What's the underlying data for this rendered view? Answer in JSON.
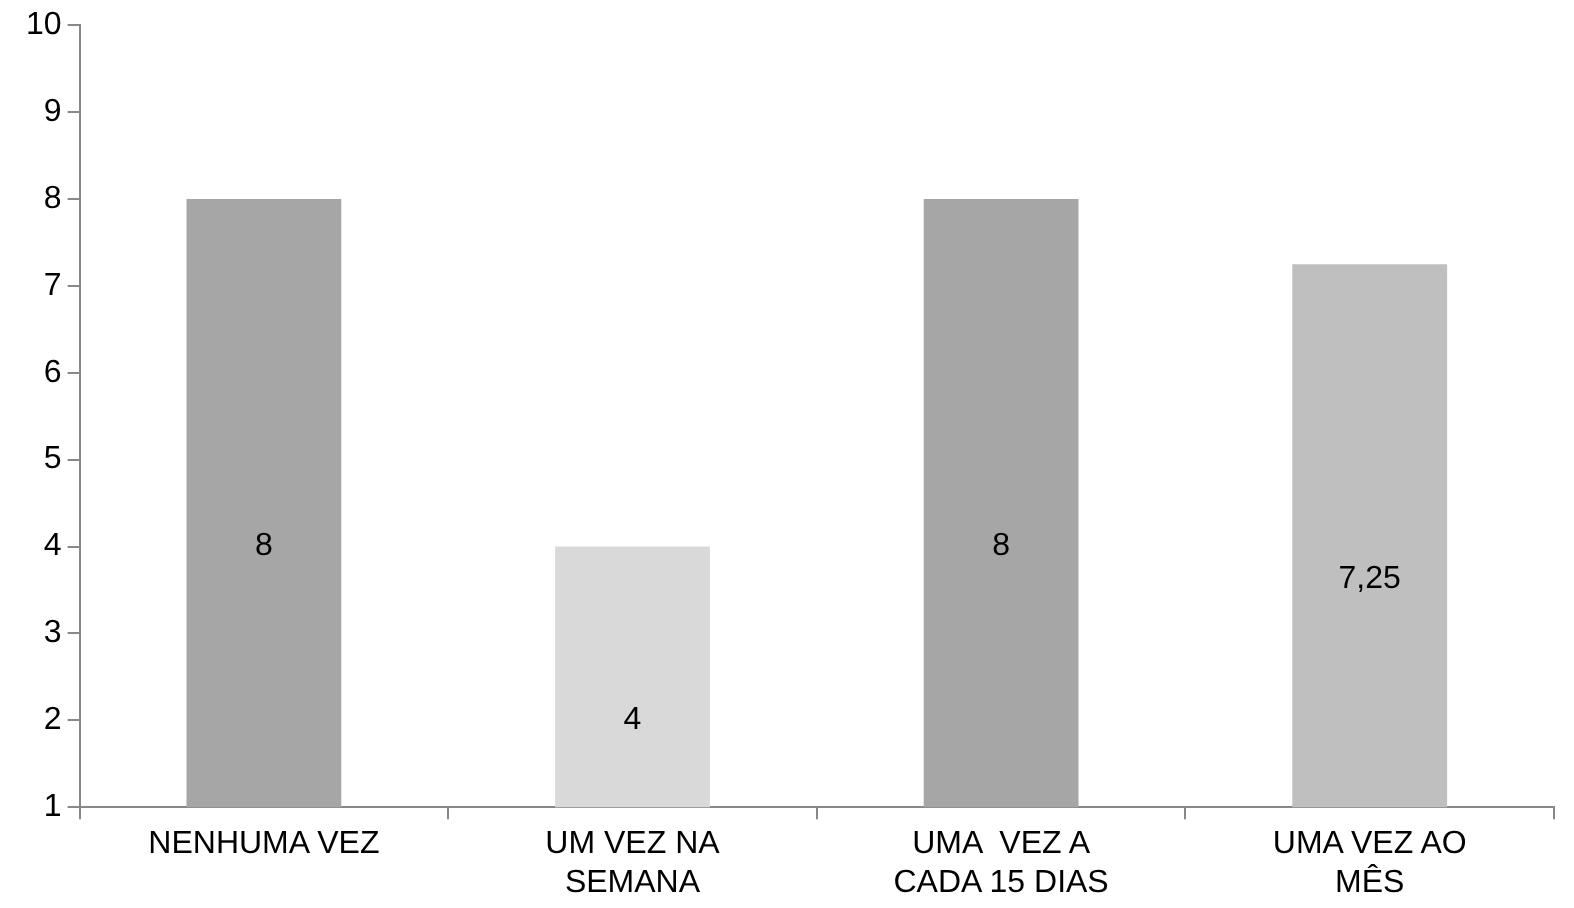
{
  "chart_data": {
    "type": "bar",
    "categories": [
      "NENHUMA VEZ",
      "UM VEZ NA SEMANA",
      "UMA  VEZ A CADA 15 DIAS",
      "UMA VEZ AO MÊS"
    ],
    "values": [
      8,
      4,
      8,
      7.25
    ],
    "colors": [
      "#a6a6a6",
      "#d9d9d9",
      "#a6a6a6",
      "#bfbfbf"
    ],
    "value_labels": [
      "8",
      "4",
      "8",
      "7,25"
    ],
    "ylim": [
      1,
      10
    ],
    "yticks": [
      1,
      2,
      3,
      4,
      5,
      6,
      7,
      8,
      9,
      10
    ],
    "grid": false,
    "legend": false
  }
}
